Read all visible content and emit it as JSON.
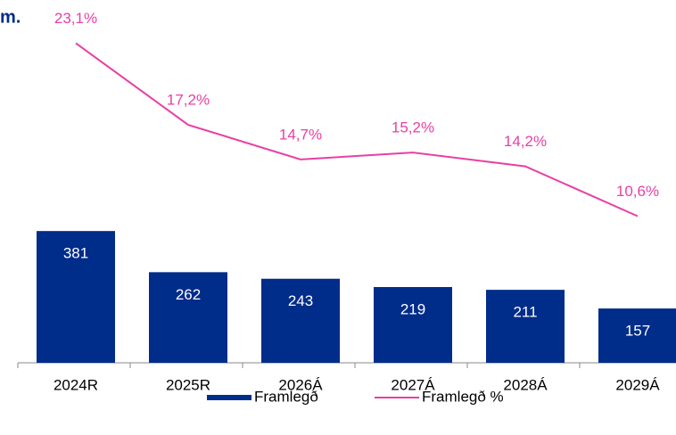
{
  "chart_data": {
    "type": "bar_line",
    "title": "m.",
    "categories": [
      "2024R",
      "2025R",
      "2026Á",
      "2027Á",
      "2028Á",
      "2029Á"
    ],
    "series": [
      {
        "name": "Framlegð",
        "type": "bar",
        "color": "#002c8a",
        "values": [
          381,
          262,
          243,
          219,
          211,
          157
        ]
      },
      {
        "name": "Framlegð %",
        "type": "line",
        "axis": "y2",
        "color": "#e83fa3",
        "values": [
          23.1,
          17.2,
          14.7,
          15.2,
          14.2,
          10.6
        ],
        "value_labels": [
          "23,1%",
          "17,2%",
          "14,7%",
          "15,2%",
          "14,2%",
          "10,6%"
        ]
      }
    ],
    "ylim": [
      0,
      1000
    ],
    "y2lim": [
      0,
      25
    ],
    "legend": "bottom"
  }
}
